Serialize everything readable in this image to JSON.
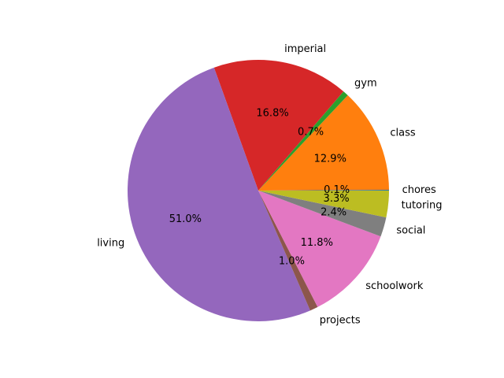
{
  "chart_data": {
    "type": "pie",
    "title": "",
    "start_angle_deg": 0,
    "direction": "counterclockwise",
    "slices": [
      {
        "label": "chores",
        "percent_label": "0.1%",
        "value": 0.1,
        "color": "#1f77b4"
      },
      {
        "label": "class",
        "percent_label": "12.9%",
        "value": 12.9,
        "color": "#ff7f0e"
      },
      {
        "label": "gym",
        "percent_label": "0.7%",
        "value": 0.7,
        "color": "#2ca02c"
      },
      {
        "label": "imperial",
        "percent_label": "16.8%",
        "value": 16.8,
        "color": "#d62728"
      },
      {
        "label": "living",
        "percent_label": "51.0%",
        "value": 51.0,
        "color": "#9467bd"
      },
      {
        "label": "projects",
        "percent_label": "1.0%",
        "value": 1.0,
        "color": "#8c564b"
      },
      {
        "label": "schoolwork",
        "percent_label": "11.8%",
        "value": 11.8,
        "color": "#e377c2"
      },
      {
        "label": "social",
        "percent_label": "2.4%",
        "value": 2.4,
        "color": "#7f7f7f"
      },
      {
        "label": "tutoring",
        "percent_label": "3.3%",
        "value": 3.3,
        "color": "#bcbd22"
      }
    ]
  }
}
